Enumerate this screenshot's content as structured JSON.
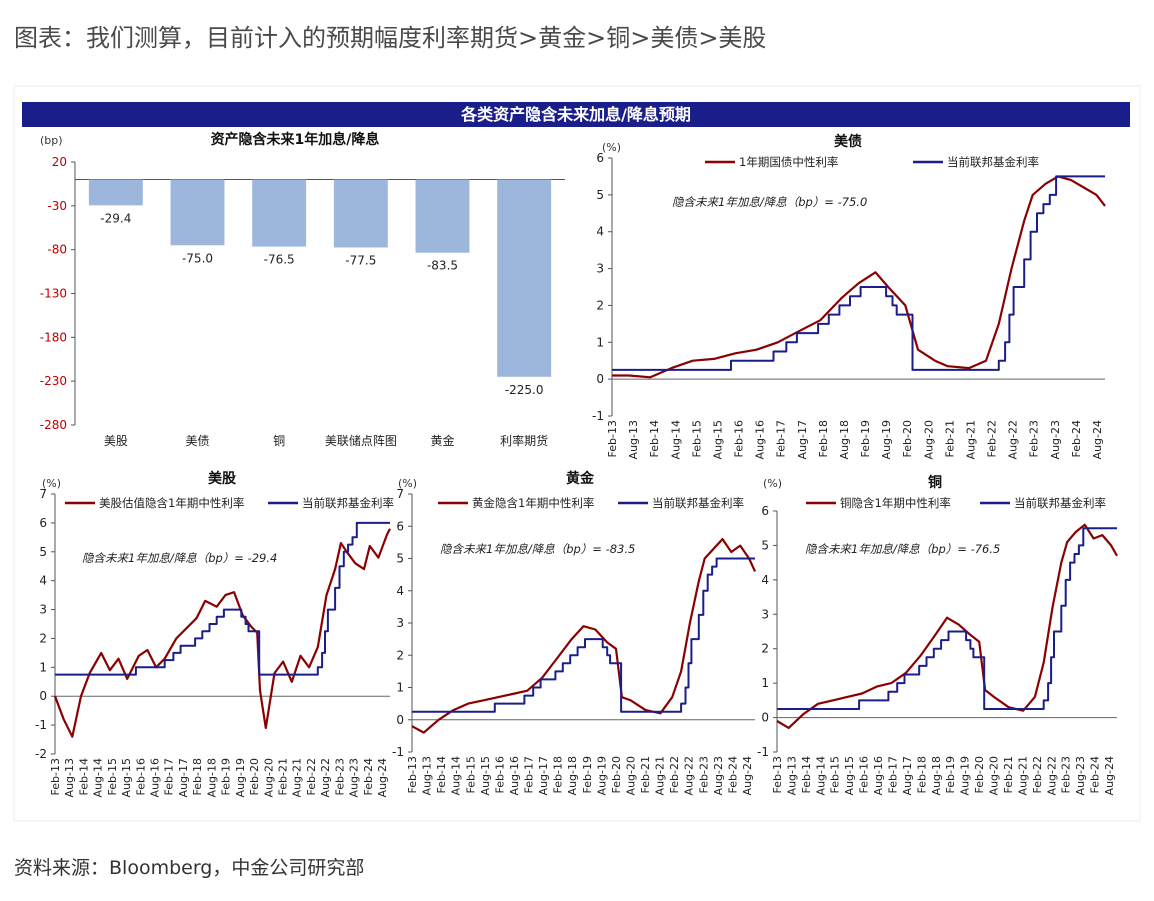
{
  "page": {
    "title": "图表：我们测算，目前计入的预期幅度利率期货>黄金>铜>美债>美股",
    "source": "资料来源：Bloomberg，中金公司研究部"
  },
  "figure": {
    "banner": "各类资产隐含未来加息/降息预期"
  },
  "colors": {
    "banner": "#1a1e8a",
    "bar": "#9db7dc",
    "implied": "#8b0000",
    "fed": "#1a1e8a",
    "tick_y": "#c00000"
  },
  "chart_data": [
    {
      "id": "bar",
      "type": "bar",
      "title": "资产隐含未来1年加息/降息",
      "unit": "(bp)",
      "categories": [
        "美股",
        "美债",
        "铜",
        "美联储点阵图",
        "黄金",
        "利率期货"
      ],
      "values": [
        -29.4,
        -75.0,
        -76.5,
        -77.5,
        -83.5,
        -225.0
      ],
      "labels": [
        "-29.4",
        "-75.0",
        "-76.5",
        "-77.5",
        "-83.5",
        "-225.0"
      ],
      "yticks": [
        20,
        -30,
        -80,
        -130,
        -180,
        -230,
        -280
      ],
      "ylim": [
        -280,
        20
      ]
    },
    {
      "id": "ust",
      "type": "line",
      "title": "美债",
      "unit": "(%)",
      "annotation": "隐含未来1年加息/降息（bp）= -75.0",
      "yticks": [
        6,
        5,
        4,
        3,
        2,
        1,
        0,
        -1
      ],
      "ylim": [
        -1,
        6
      ],
      "xticks": [
        "Feb-13",
        "Aug-13",
        "Feb-14",
        "Aug-14",
        "Feb-15",
        "Aug-15",
        "Feb-16",
        "Aug-16",
        "Feb-17",
        "Aug-17",
        "Feb-18",
        "Aug-18",
        "Feb-19",
        "Aug-19",
        "Feb-20",
        "Aug-20",
        "Feb-21",
        "Aug-21",
        "Feb-22",
        "Aug-22",
        "Feb-23",
        "Aug-23",
        "Feb-24",
        "Aug-24"
      ],
      "series": [
        {
          "name": "1年期国债中性利率",
          "x": [
            2013.1,
            2013.5,
            2014.0,
            2014.5,
            2015.0,
            2015.5,
            2016.0,
            2016.5,
            2017.0,
            2017.5,
            2018.0,
            2018.5,
            2018.9,
            2019.3,
            2019.6,
            2020.0,
            2020.3,
            2020.7,
            2021.0,
            2021.5,
            2021.9,
            2022.2,
            2022.5,
            2022.8,
            2023.0,
            2023.3,
            2023.6,
            2023.9,
            2024.2,
            2024.5,
            2024.7
          ],
          "y": [
            0.1,
            0.1,
            0.05,
            0.3,
            0.5,
            0.55,
            0.7,
            0.8,
            1.0,
            1.3,
            1.6,
            2.2,
            2.6,
            2.9,
            2.5,
            2.0,
            0.8,
            0.5,
            0.35,
            0.3,
            0.5,
            1.5,
            3.0,
            4.3,
            5.0,
            5.3,
            5.5,
            5.4,
            5.2,
            5.0,
            4.7
          ]
        },
        {
          "name": "当前联邦基金利率",
          "x": [
            2013.1,
            2015.9,
            2015.9,
            2016.9,
            2016.9,
            2017.2,
            2017.2,
            2017.45,
            2017.45,
            2017.95,
            2017.95,
            2018.2,
            2018.2,
            2018.45,
            2018.45,
            2018.7,
            2018.7,
            2018.95,
            2018.95,
            2019.55,
            2019.55,
            2019.7,
            2019.7,
            2019.8,
            2019.8,
            2020.17,
            2020.17,
            2022.2,
            2022.2,
            2022.35,
            2022.35,
            2022.45,
            2022.45,
            2022.55,
            2022.55,
            2022.8,
            2022.8,
            2022.95,
            2022.95,
            2023.1,
            2023.1,
            2023.25,
            2023.25,
            2023.4,
            2023.4,
            2023.55,
            2023.55,
            2024.7
          ],
          "y": [
            0.25,
            0.25,
            0.5,
            0.5,
            0.75,
            0.75,
            1.0,
            1.0,
            1.25,
            1.25,
            1.5,
            1.5,
            1.75,
            1.75,
            2.0,
            2.0,
            2.25,
            2.25,
            2.5,
            2.5,
            2.25,
            2.25,
            2.0,
            2.0,
            1.75,
            1.75,
            0.25,
            0.25,
            0.5,
            0.5,
            1.0,
            1.0,
            1.75,
            1.75,
            2.5,
            2.5,
            3.25,
            3.25,
            4.0,
            4.0,
            4.5,
            4.5,
            4.75,
            4.75,
            5.0,
            5.0,
            5.5,
            5.5
          ]
        }
      ]
    },
    {
      "id": "spx",
      "type": "line",
      "title": "美股",
      "unit": "(%)",
      "annotation": "隐含未来1年加息/降息（bp）= -29.4",
      "yticks": [
        7,
        6,
        5,
        4,
        3,
        2,
        1,
        0,
        -1,
        -2
      ],
      "ylim": [
        -2,
        7
      ],
      "xticks": [
        "Feb-13",
        "Aug-13",
        "Feb-14",
        "Aug-14",
        "Feb-15",
        "Aug-15",
        "Feb-16",
        "Aug-16",
        "Feb-17",
        "Aug-17",
        "Feb-18",
        "Aug-18",
        "Feb-19",
        "Aug-19",
        "Feb-20",
        "Aug-20",
        "Feb-21",
        "Aug-21",
        "Feb-22",
        "Aug-22",
        "Feb-23",
        "Aug-23",
        "Feb-24",
        "Aug-24"
      ],
      "series": [
        {
          "name": "美股估值隐含1年期中性利率",
          "x": [
            2013.1,
            2013.4,
            2013.7,
            2014.0,
            2014.3,
            2014.7,
            2015.0,
            2015.3,
            2015.6,
            2016.0,
            2016.3,
            2016.6,
            2016.9,
            2017.3,
            2017.7,
            2018.0,
            2018.3,
            2018.7,
            2019.0,
            2019.3,
            2019.6,
            2019.9,
            2020.1,
            2020.2,
            2020.4,
            2020.7,
            2021.0,
            2021.3,
            2021.6,
            2021.9,
            2022.2,
            2022.5,
            2022.8,
            2023.0,
            2023.2,
            2023.5,
            2023.8,
            2024.0,
            2024.3,
            2024.6,
            2024.7
          ],
          "y": [
            0.0,
            -0.8,
            -1.4,
            0.0,
            0.8,
            1.5,
            0.9,
            1.3,
            0.6,
            1.4,
            1.6,
            1.0,
            1.3,
            2.0,
            2.4,
            2.7,
            3.3,
            3.1,
            3.5,
            3.6,
            2.8,
            2.4,
            2.2,
            0.2,
            -1.1,
            0.8,
            1.2,
            0.5,
            1.4,
            1.0,
            1.7,
            3.5,
            4.4,
            5.3,
            5.0,
            4.6,
            4.4,
            5.2,
            4.8,
            5.6,
            5.8
          ]
        },
        {
          "name": "当前联邦基金利率",
          "x": [
            2013.1,
            2015.9,
            2015.9,
            2016.9,
            2016.9,
            2017.2,
            2017.2,
            2017.45,
            2017.45,
            2017.95,
            2017.95,
            2018.2,
            2018.2,
            2018.45,
            2018.45,
            2018.7,
            2018.7,
            2018.95,
            2018.95,
            2019.55,
            2019.55,
            2019.7,
            2019.7,
            2019.8,
            2019.8,
            2020.17,
            2020.17,
            2022.2,
            2022.2,
            2022.35,
            2022.35,
            2022.45,
            2022.45,
            2022.55,
            2022.55,
            2022.8,
            2022.8,
            2022.95,
            2022.95,
            2023.1,
            2023.1,
            2023.25,
            2023.25,
            2023.4,
            2023.4,
            2023.55,
            2023.55,
            2024.7
          ],
          "y": [
            0.75,
            0.75,
            1.0,
            1.0,
            1.25,
            1.25,
            1.5,
            1.5,
            1.75,
            1.75,
            2.0,
            2.0,
            2.25,
            2.25,
            2.5,
            2.5,
            2.75,
            2.75,
            3.0,
            3.0,
            2.75,
            2.75,
            2.5,
            2.5,
            2.25,
            2.25,
            0.75,
            0.75,
            1.0,
            1.0,
            1.5,
            1.5,
            2.25,
            2.25,
            3.0,
            3.0,
            3.75,
            3.75,
            4.5,
            4.5,
            5.0,
            5.0,
            5.25,
            5.25,
            5.5,
            5.5,
            6.0,
            6.0
          ]
        }
      ]
    },
    {
      "id": "gold",
      "type": "line",
      "title": "黄金",
      "unit": "(%)",
      "annotation": "隐含未来1年加息/降息（bp）= -83.5",
      "yticks": [
        7,
        6,
        5,
        4,
        3,
        2,
        1,
        0,
        -1
      ],
      "ylim": [
        -1,
        7
      ],
      "xticks": [
        "Feb-13",
        "Aug-13",
        "Feb-14",
        "Aug-14",
        "Feb-15",
        "Aug-15",
        "Feb-16",
        "Aug-16",
        "Feb-17",
        "Aug-17",
        "Feb-18",
        "Aug-18",
        "Feb-19",
        "Aug-19",
        "Feb-20",
        "Aug-20",
        "Feb-21",
        "Aug-21",
        "Feb-22",
        "Aug-22",
        "Feb-23",
        "Aug-23",
        "Feb-24",
        "Aug-24"
      ],
      "series": [
        {
          "name": "黄金隐含1年期中性利率",
          "x": [
            2013.1,
            2013.5,
            2014.0,
            2014.5,
            2015.0,
            2015.5,
            2016.0,
            2016.5,
            2017.0,
            2017.5,
            2018.0,
            2018.5,
            2018.9,
            2019.3,
            2019.7,
            2020.0,
            2020.2,
            2020.5,
            2021.0,
            2021.5,
            2021.9,
            2022.2,
            2022.5,
            2022.8,
            2023.0,
            2023.3,
            2023.6,
            2023.9,
            2024.2,
            2024.5,
            2024.7
          ],
          "y": [
            -0.2,
            -0.4,
            0.0,
            0.3,
            0.5,
            0.6,
            0.7,
            0.8,
            0.9,
            1.3,
            1.9,
            2.5,
            2.9,
            2.8,
            2.4,
            2.2,
            0.7,
            0.6,
            0.3,
            0.2,
            0.7,
            1.5,
            3.0,
            4.3,
            5.0,
            5.3,
            5.6,
            5.2,
            5.4,
            5.0,
            4.6
          ]
        },
        {
          "name": "当前联邦基金利率",
          "x": [
            2013.1,
            2015.9,
            2015.9,
            2016.9,
            2016.9,
            2017.2,
            2017.2,
            2017.45,
            2017.45,
            2017.95,
            2017.95,
            2018.2,
            2018.2,
            2018.45,
            2018.45,
            2018.7,
            2018.7,
            2018.95,
            2018.95,
            2019.55,
            2019.55,
            2019.7,
            2019.7,
            2019.8,
            2019.8,
            2020.17,
            2020.17,
            2022.2,
            2022.2,
            2022.35,
            2022.35,
            2022.45,
            2022.45,
            2022.55,
            2022.55,
            2022.8,
            2022.8,
            2022.95,
            2022.95,
            2023.1,
            2023.1,
            2023.25,
            2023.25,
            2023.4,
            2023.4,
            2023.55,
            2023.55,
            2024.7
          ],
          "y": [
            0.25,
            0.25,
            0.5,
            0.5,
            0.75,
            0.75,
            1.0,
            1.0,
            1.25,
            1.25,
            1.5,
            1.5,
            1.75,
            1.75,
            2.0,
            2.0,
            2.25,
            2.25,
            2.5,
            2.5,
            2.25,
            2.25,
            2.0,
            2.0,
            1.75,
            1.75,
            0.25,
            0.25,
            0.5,
            0.5,
            1.0,
            1.0,
            1.75,
            1.75,
            2.5,
            2.5,
            3.25,
            3.25,
            4.0,
            4.0,
            4.5,
            4.5,
            4.75,
            4.75,
            5.0,
            5.0,
            5.0,
            5.0
          ]
        }
      ]
    },
    {
      "id": "copper",
      "type": "line",
      "title": "铜",
      "unit": "(%)",
      "annotation": "隐含未来1年加息/降息（bp）= -76.5",
      "yticks": [
        6,
        5,
        4,
        3,
        2,
        1,
        0,
        -1
      ],
      "ylim": [
        -1,
        6
      ],
      "xticks": [
        "Feb-13",
        "Aug-13",
        "Feb-14",
        "Aug-14",
        "Feb-15",
        "Aug-15",
        "Feb-16",
        "Aug-16",
        "Feb-17",
        "Aug-17",
        "Feb-18",
        "Aug-18",
        "Feb-19",
        "Aug-19",
        "Feb-20",
        "Aug-20",
        "Feb-21",
        "Aug-21",
        "Feb-22",
        "Aug-22",
        "Feb-23",
        "Aug-23",
        "Feb-24",
        "Aug-24"
      ],
      "series": [
        {
          "name": "铜隐含1年期中性利率",
          "x": [
            2013.1,
            2013.5,
            2014.0,
            2014.5,
            2015.0,
            2015.5,
            2016.0,
            2016.5,
            2017.0,
            2017.5,
            2018.0,
            2018.5,
            2018.9,
            2019.3,
            2019.7,
            2020.0,
            2020.2,
            2020.5,
            2021.0,
            2021.5,
            2021.9,
            2022.2,
            2022.5,
            2022.8,
            2023.0,
            2023.3,
            2023.6,
            2023.9,
            2024.2,
            2024.5,
            2024.7
          ],
          "y": [
            -0.1,
            -0.3,
            0.1,
            0.4,
            0.5,
            0.6,
            0.7,
            0.9,
            1.0,
            1.3,
            1.8,
            2.4,
            2.9,
            2.7,
            2.4,
            2.2,
            0.8,
            0.6,
            0.3,
            0.2,
            0.6,
            1.6,
            3.2,
            4.5,
            5.1,
            5.4,
            5.6,
            5.2,
            5.3,
            5.0,
            4.7
          ]
        },
        {
          "name": "当前联邦基金利率",
          "x": [
            2013.1,
            2015.9,
            2015.9,
            2016.9,
            2016.9,
            2017.2,
            2017.2,
            2017.45,
            2017.45,
            2017.95,
            2017.95,
            2018.2,
            2018.2,
            2018.45,
            2018.45,
            2018.7,
            2018.7,
            2018.95,
            2018.95,
            2019.55,
            2019.55,
            2019.7,
            2019.7,
            2019.8,
            2019.8,
            2020.17,
            2020.17,
            2022.2,
            2022.2,
            2022.35,
            2022.35,
            2022.45,
            2022.45,
            2022.55,
            2022.55,
            2022.8,
            2022.8,
            2022.95,
            2022.95,
            2023.1,
            2023.1,
            2023.25,
            2023.25,
            2023.4,
            2023.4,
            2023.55,
            2023.55,
            2024.7
          ],
          "y": [
            0.25,
            0.25,
            0.5,
            0.5,
            0.75,
            0.75,
            1.0,
            1.0,
            1.25,
            1.25,
            1.5,
            1.5,
            1.75,
            1.75,
            2.0,
            2.0,
            2.25,
            2.25,
            2.5,
            2.5,
            2.25,
            2.25,
            2.0,
            2.0,
            1.75,
            1.75,
            0.25,
            0.25,
            0.5,
            0.5,
            1.0,
            1.0,
            1.75,
            1.75,
            2.5,
            2.5,
            3.25,
            3.25,
            4.0,
            4.0,
            4.5,
            4.5,
            4.75,
            4.75,
            5.0,
            5.0,
            5.5,
            5.5
          ]
        }
      ]
    }
  ]
}
